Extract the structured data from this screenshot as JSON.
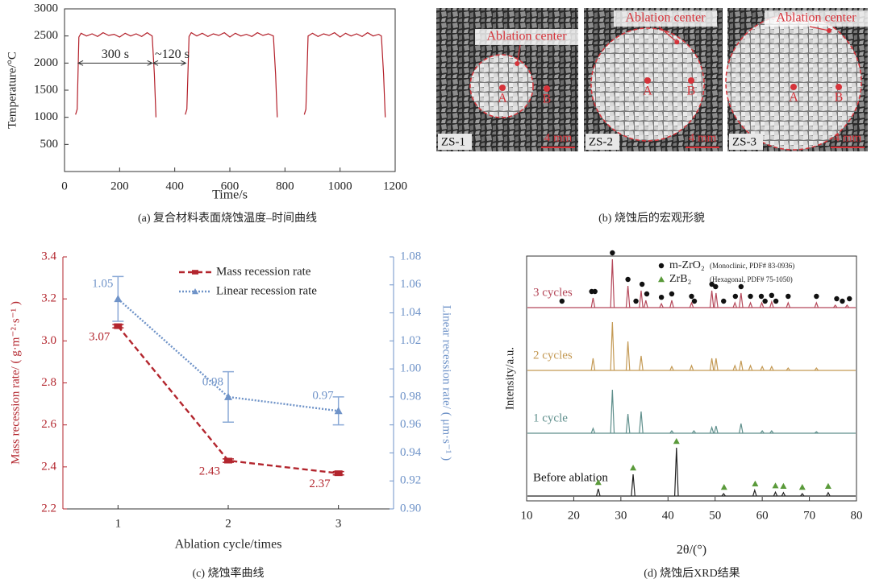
{
  "chart_data": [
    {
      "type": "line",
      "caption": "(a) 复合材料表面烧蚀温度–时间曲线",
      "x_label": "Time/s",
      "y_label": "Temperature/°C",
      "color": "#b3202a",
      "x": [
        40,
        46,
        52,
        60,
        80,
        100,
        120,
        140,
        160,
        180,
        200,
        220,
        240,
        260,
        280,
        300,
        318,
        326,
        332,
        null,
        438,
        444,
        452,
        460,
        480,
        500,
        520,
        540,
        560,
        580,
        600,
        620,
        640,
        660,
        680,
        700,
        720,
        740,
        758,
        766,
        772,
        null,
        870,
        876,
        884,
        900,
        920,
        940,
        960,
        980,
        1000,
        1020,
        1040,
        1060,
        1080,
        1100,
        1120,
        1140,
        1150,
        1158,
        1164
      ],
      "values": [
        1050,
        1150,
        2480,
        2550,
        2500,
        2540,
        2490,
        2560,
        2510,
        2530,
        2480,
        2550,
        2500,
        2540,
        2490,
        2560,
        2500,
        1800,
        1000,
        null,
        1050,
        1150,
        2490,
        2560,
        2500,
        2550,
        2490,
        2540,
        2510,
        2560,
        2480,
        2550,
        2500,
        2530,
        2490,
        2560,
        2510,
        2540,
        2500,
        1800,
        1000,
        null,
        1050,
        1150,
        2500,
        2550,
        2490,
        2540,
        2510,
        2560,
        2480,
        2550,
        2500,
        2540,
        2490,
        2560,
        2500,
        2530,
        2500,
        1800,
        1000
      ],
      "xlim": [
        0,
        1200
      ],
      "xticks": [
        0,
        200,
        400,
        600,
        800,
        1000,
        1200
      ],
      "ylim": [
        0,
        3000
      ],
      "yticks": [
        500,
        1000,
        1500,
        2000,
        2500,
        3000
      ],
      "annotations": [
        "300 s",
        "~120 s"
      ]
    },
    {
      "type": "line",
      "caption": "(c) 烧蚀率曲线",
      "x_label": "Ablation cycle/times",
      "y_label": "Mass recession rate/ ( g·m⁻²·s⁻¹ )",
      "y2_label": "Linear recession rate/ ( μm·s⁻¹ )",
      "x": [
        1,
        2,
        3
      ],
      "xlim": [
        0.5,
        3.5
      ],
      "xticks": [
        1,
        2,
        3
      ],
      "ylim": [
        2.2,
        3.4
      ],
      "yticks": [
        2.2,
        2.4,
        2.6,
        2.8,
        {
          "value": 3,
          "label": "3.0"
        },
        3.2,
        3.4
      ],
      "y2lim": [
        0.9,
        1.08
      ],
      "y2ticks": [
        {
          "value": 0.9,
          "label": "0.90"
        },
        0.92,
        0.94,
        0.96,
        0.98,
        {
          "value": 1,
          "label": "1.00"
        },
        1.02,
        1.04,
        1.06,
        1.08
      ],
      "series": [
        {
          "name": "Mass recession rate",
          "color": "#b3262e",
          "marker": "square",
          "line_style": "dashed",
          "values": [
            3.07,
            2.43,
            2.37
          ],
          "errors": [
            0.008,
            0.008,
            0.008
          ]
        },
        {
          "name": "Linear recession rate",
          "color": "#6f93c8",
          "marker": "triangle",
          "line_style": "dotted",
          "axis": "y2",
          "values": [
            1.05,
            0.98,
            0.97
          ],
          "errors": [
            0.016,
            0.018,
            0.01
          ]
        }
      ]
    },
    {
      "type": "spectrum",
      "caption": "(d) 烧蚀后XRD结果",
      "x_label": "2θ/(°)",
      "y_label": "Intensity/a.u.",
      "xlim": [
        10,
        80
      ],
      "xticks": [
        10,
        20,
        30,
        40,
        50,
        60,
        70,
        80
      ],
      "series": [
        {
          "name": "3 cycles",
          "color": "#b5485a",
          "peaks": [
            24.1,
            28.2,
            31.5,
            34.3,
            35.3,
            38.6,
            40.8,
            45.0,
            49.3,
            50.2,
            54.2,
            55.5,
            57.5,
            59.9,
            62.0,
            65.5,
            71.5,
            75.5,
            78.0
          ],
          "values": [
            0.2,
            1.0,
            0.45,
            0.35,
            0.15,
            0.08,
            0.15,
            0.1,
            0.35,
            0.3,
            0.1,
            0.3,
            0.1,
            0.1,
            0.12,
            0.1,
            0.1,
            0.05,
            0.05
          ]
        },
        {
          "name": "2 cycles",
          "color": "#c49a55",
          "peaks": [
            24.1,
            28.2,
            31.5,
            34.3,
            40.8,
            45.0,
            49.3,
            50.2,
            54.2,
            55.5,
            57.5,
            60.0,
            62.0,
            65.5,
            71.5
          ],
          "values": [
            0.25,
            1.0,
            0.6,
            0.3,
            0.08,
            0.1,
            0.25,
            0.25,
            0.1,
            0.2,
            0.1,
            0.08,
            0.08,
            0.05,
            0.05
          ]
        },
        {
          "name": "1 cycle",
          "color": "#5f8f8c",
          "peaks": [
            24.1,
            28.2,
            31.5,
            34.3,
            40.8,
            45.5,
            49.3,
            50.2,
            55.5,
            60.0,
            62.0,
            71.5
          ],
          "values": [
            0.1,
            0.9,
            0.4,
            0.45,
            0.05,
            0.05,
            0.12,
            0.15,
            0.2,
            0.05,
            0.05,
            0.03
          ]
        },
        {
          "name": "Before ablation",
          "color": "#222222",
          "peaks": [
            25.2,
            32.6,
            41.8,
            51.8,
            58.4,
            62.8,
            64.5,
            68.5,
            74.0
          ],
          "values": [
            0.15,
            0.45,
            1.0,
            0.05,
            0.12,
            0.08,
            0.07,
            0.05,
            0.07
          ]
        }
      ],
      "phases": [
        {
          "name": "m-ZrO₂",
          "detail": "(Monoclinic, PDF# 83-0936)",
          "marker": "circle",
          "color": "#111111",
          "positions": [
            17.5,
            23.8,
            24.5,
            28.2,
            31.5,
            33.2,
            34.5,
            35.5,
            38.6,
            40.8,
            45.0,
            45.6,
            49.3,
            50.1,
            51.8,
            54.3,
            55.5,
            57.5,
            59.8,
            60.6,
            62.0,
            62.9,
            65.5,
            71.5,
            75.8,
            77.0,
            78.5
          ]
        },
        {
          "name": "ZrB₂",
          "detail": "(Hexagonal, PDF# 75-1050)",
          "marker": "triangle",
          "color": "#5a9a3a",
          "positions": [
            25.2,
            32.6,
            41.8,
            51.9,
            58.5,
            62.8,
            64.5,
            68.5,
            74.0
          ]
        }
      ]
    }
  ],
  "figure_b": {
    "caption": "(b) 烧蚀后的宏观形貌",
    "panels": [
      {
        "name": "ZS-1",
        "marker_label": "Ablation center",
        "points": [
          "A",
          "B"
        ],
        "scale": "4 mm"
      },
      {
        "name": "ZS-2",
        "marker_label": "Ablation center",
        "points": [
          "A",
          "B"
        ],
        "scale": "4 mm"
      },
      {
        "name": "ZS-3",
        "marker_label": "Ablation center",
        "points": [
          "A",
          "B"
        ],
        "scale": "4 mm"
      }
    ]
  }
}
